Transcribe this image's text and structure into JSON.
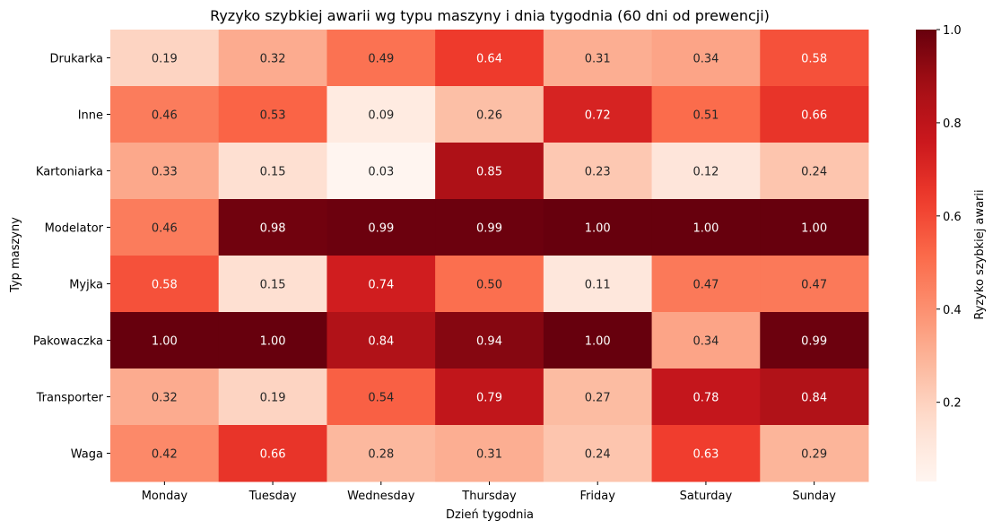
{
  "chart_data": {
    "type": "heatmap",
    "title": "Ryzyko szybkiej awarii wg typu maszyny i dnia tygodnia (60 dni od prewencji)",
    "xlabel": "Dzień tygodnia",
    "ylabel": "Typ maszyny",
    "colorbar_label": "Ryzyko szybkiej awarii",
    "colormap": "Reds",
    "vmin": 0.03,
    "vmax": 1.0,
    "colorbar_ticks": [
      "0.2",
      "0.4",
      "0.6",
      "0.8",
      "1.0"
    ],
    "x_categories": [
      "Monday",
      "Tuesday",
      "Wednesday",
      "Thursday",
      "Friday",
      "Saturday",
      "Sunday"
    ],
    "y_categories": [
      "Drukarka",
      "Inne",
      "Kartoniarka",
      "Modelator",
      "Myjka",
      "Pakowaczka",
      "Transporter",
      "Waga"
    ],
    "values": [
      [
        0.19,
        0.32,
        0.49,
        0.64,
        0.31,
        0.34,
        0.58
      ],
      [
        0.46,
        0.53,
        0.09,
        0.26,
        0.72,
        0.51,
        0.66
      ],
      [
        0.33,
        0.15,
        0.03,
        0.85,
        0.23,
        0.12,
        0.24
      ],
      [
        0.46,
        0.98,
        0.99,
        0.99,
        1.0,
        1.0,
        1.0
      ],
      [
        0.58,
        0.15,
        0.74,
        0.5,
        0.11,
        0.47,
        0.47
      ],
      [
        1.0,
        1.0,
        0.84,
        0.94,
        1.0,
        0.34,
        0.99
      ],
      [
        0.32,
        0.19,
        0.54,
        0.79,
        0.27,
        0.78,
        0.84
      ],
      [
        0.42,
        0.66,
        0.28,
        0.31,
        0.24,
        0.63,
        0.29
      ]
    ]
  }
}
